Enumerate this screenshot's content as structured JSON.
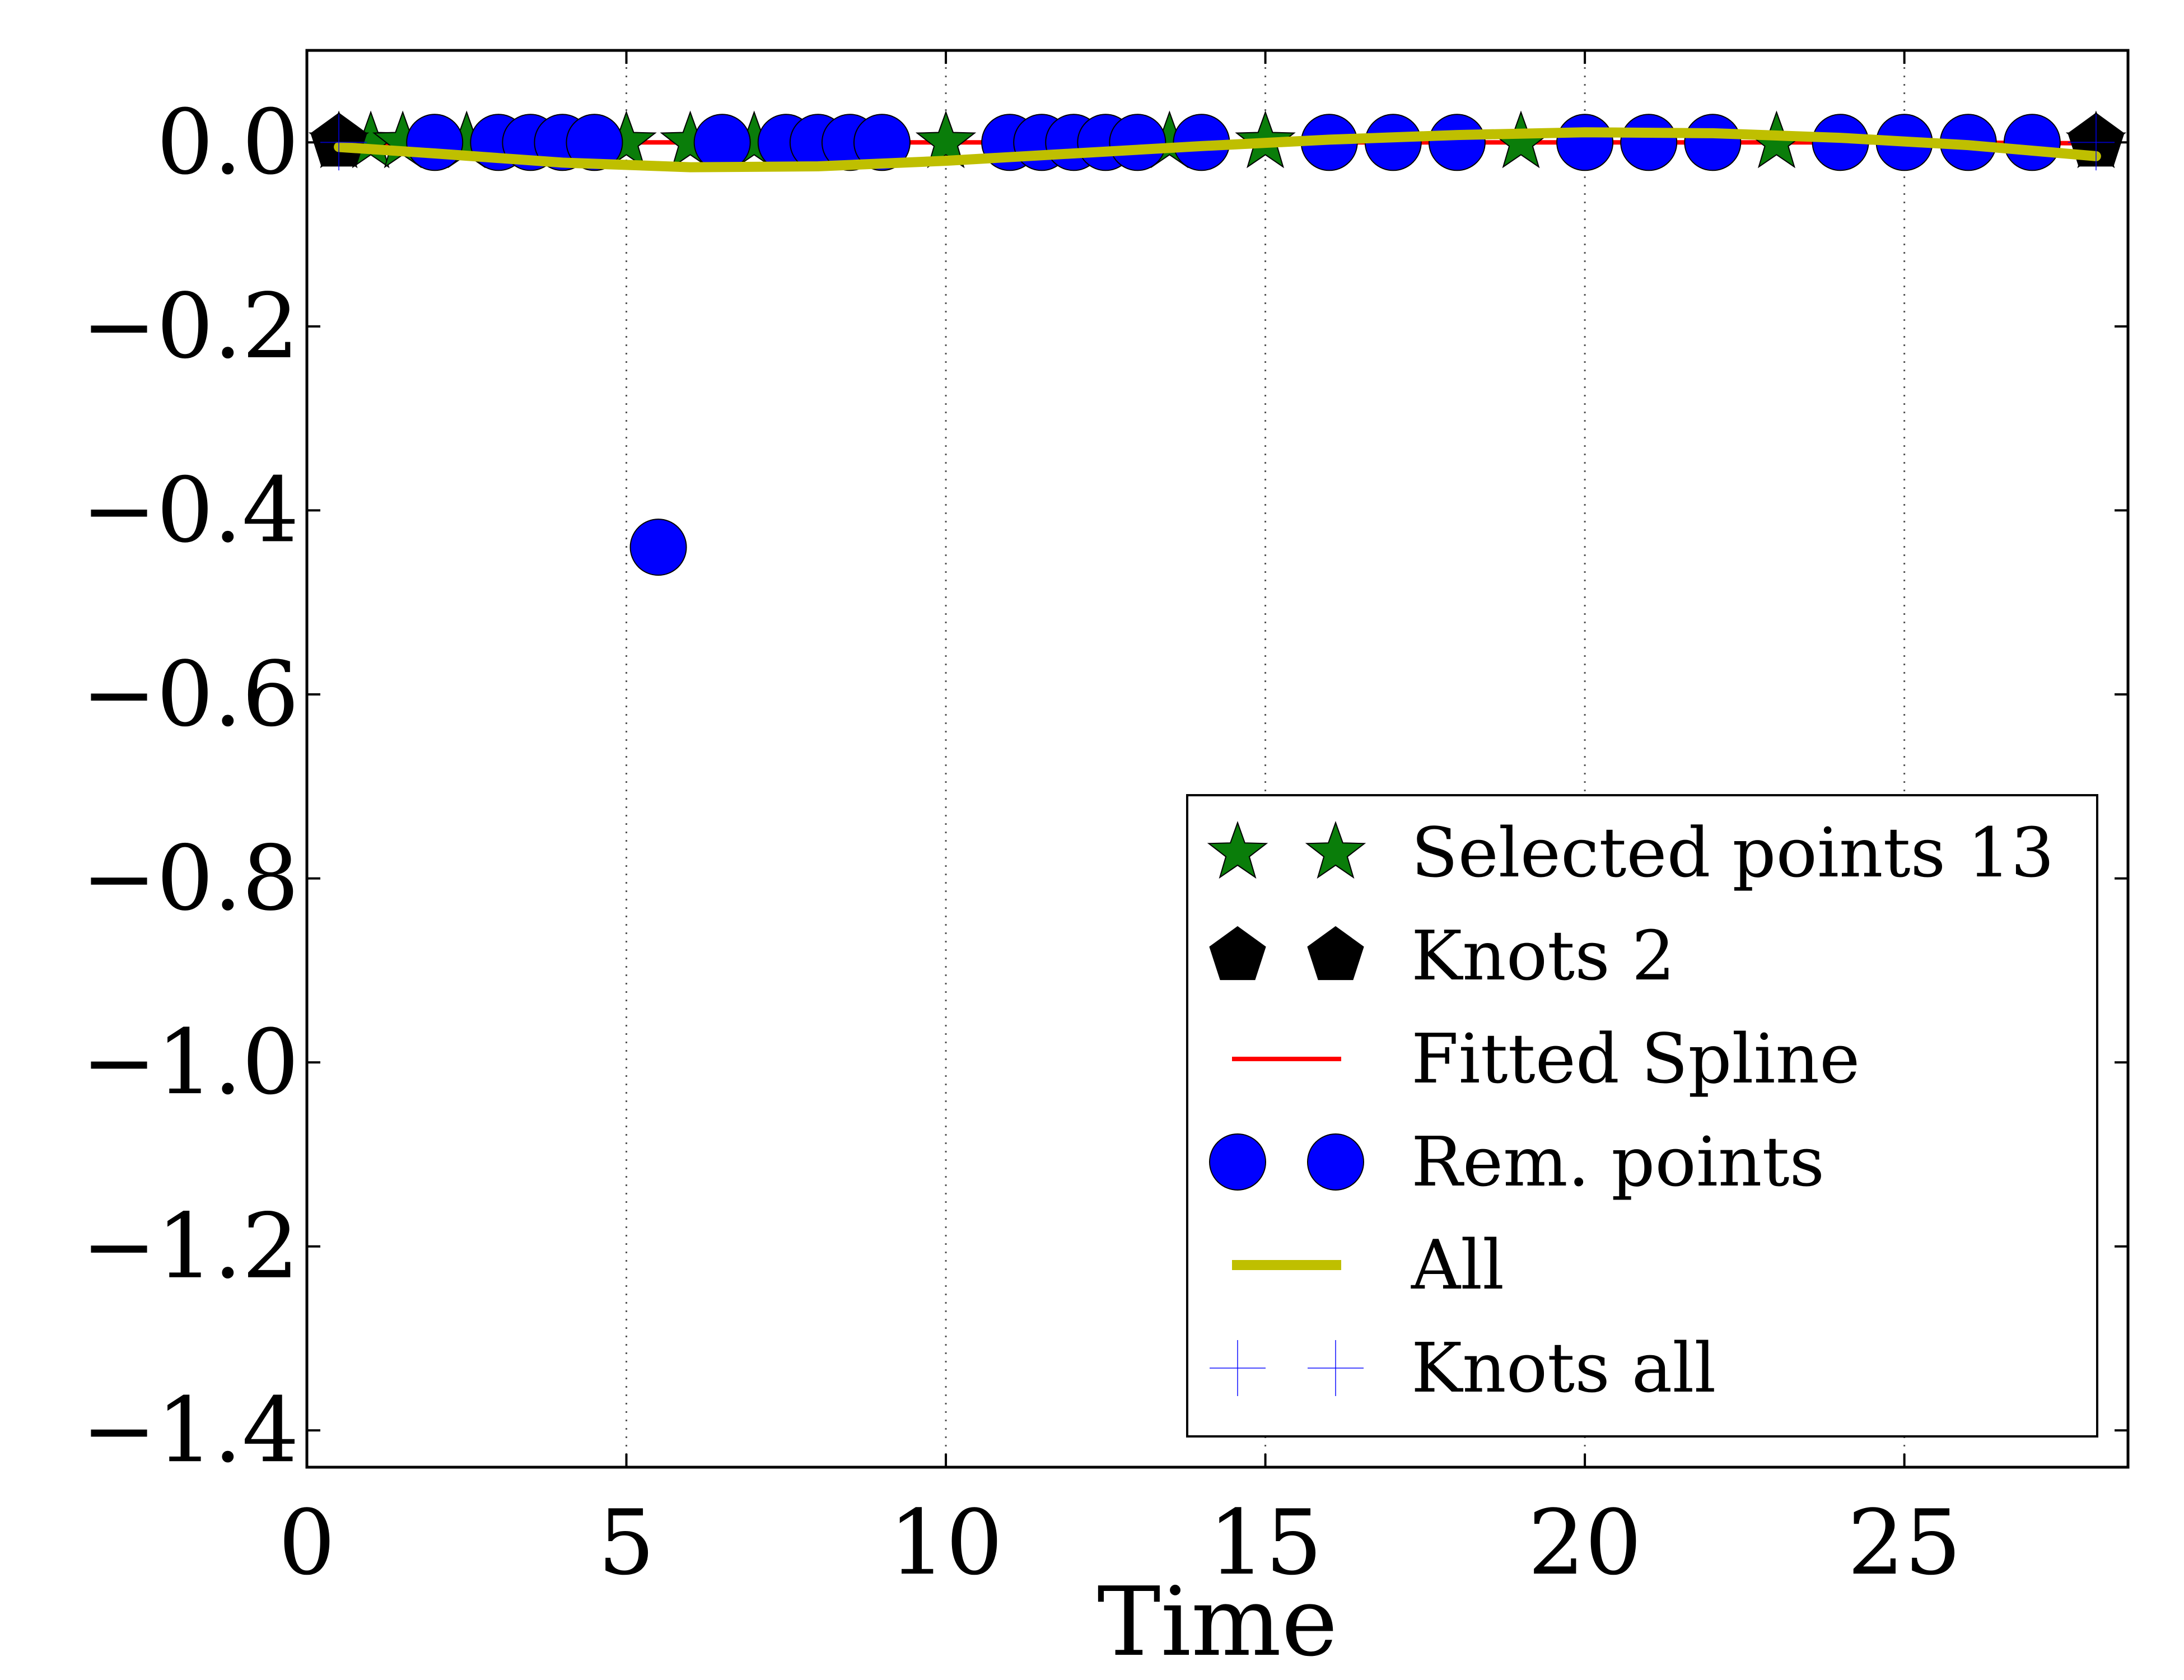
{
  "chart_data": {
    "type": "scatter",
    "title": "",
    "xlabel": "Time",
    "ylabel": "",
    "xlim": [
      0,
      28.5
    ],
    "ylim": [
      -1.44,
      0.1
    ],
    "xticks": [
      0,
      5,
      10,
      15,
      20,
      25
    ],
    "xtick_labels": [
      "0",
      "5",
      "10",
      "15",
      "20",
      "25"
    ],
    "yticks": [
      0.0,
      -0.2,
      -0.4,
      -0.6,
      -0.8,
      -1.0,
      -1.2,
      -1.4
    ],
    "ytick_labels": [
      "0.0",
      "−0.2",
      "−0.4",
      "−0.6",
      "−0.8",
      "−1.0",
      "−1.2",
      "−1.4"
    ],
    "grid": "vertical dotted at x ticks",
    "legend_position": "lower-right",
    "series": [
      {
        "name": "Selected points 13",
        "marker": "star",
        "color": "#0a7d0a",
        "points": [
          [
            1.0,
            0.0
          ],
          [
            1.5,
            0.0
          ],
          [
            2.5,
            0.0
          ],
          [
            5.0,
            0.0
          ],
          [
            6.0,
            0.0
          ],
          [
            7.0,
            0.0
          ],
          [
            10.0,
            0.0
          ],
          [
            13.5,
            0.0
          ],
          [
            15.0,
            0.0
          ],
          [
            19.0,
            0.0
          ],
          [
            23.0,
            0.0
          ],
          [
            0.5,
            0.0
          ],
          [
            28.0,
            0.0
          ]
        ]
      },
      {
        "name": "Knots 2",
        "marker": "pentagon",
        "color": "#000000",
        "points": [
          [
            0.5,
            0.0
          ],
          [
            28.0,
            0.0
          ]
        ]
      },
      {
        "name": "Fitted Spline",
        "marker": "line",
        "color": "#ff0000",
        "points": [
          [
            0.5,
            -0.001
          ],
          [
            5,
            0.0
          ],
          [
            10,
            0.0
          ],
          [
            15,
            0.0
          ],
          [
            20,
            0.0
          ],
          [
            25,
            0.0
          ],
          [
            28.0,
            -0.001
          ]
        ]
      },
      {
        "name": "Rem. points",
        "marker": "circle",
        "color": "#0000ff",
        "points": [
          [
            2.0,
            0.0
          ],
          [
            3.0,
            0.0
          ],
          [
            3.5,
            0.0
          ],
          [
            4.0,
            0.0
          ],
          [
            4.5,
            0.0
          ],
          [
            5.5,
            -0.44
          ],
          [
            6.5,
            0.0
          ],
          [
            7.5,
            0.0
          ],
          [
            8.0,
            0.0
          ],
          [
            8.5,
            0.0
          ],
          [
            9.0,
            0.0
          ],
          [
            11.0,
            0.0
          ],
          [
            11.5,
            0.0
          ],
          [
            12.0,
            0.0
          ],
          [
            12.5,
            0.0
          ],
          [
            13.0,
            0.0
          ],
          [
            14.0,
            0.0
          ],
          [
            16.0,
            0.0
          ],
          [
            17.0,
            0.0
          ],
          [
            18.0,
            0.0
          ],
          [
            20.0,
            0.0
          ],
          [
            21.0,
            0.0
          ],
          [
            22.0,
            0.0
          ],
          [
            24.0,
            0.0
          ],
          [
            25.0,
            0.0
          ],
          [
            26.0,
            0.0
          ],
          [
            27.0,
            0.0
          ]
        ]
      },
      {
        "name": "All",
        "marker": "line",
        "color": "#bfbf00",
        "points": [
          [
            0.5,
            -0.005
          ],
          [
            2,
            -0.012
          ],
          [
            4,
            -0.022
          ],
          [
            6,
            -0.027
          ],
          [
            8,
            -0.026
          ],
          [
            10,
            -0.02
          ],
          [
            12,
            -0.012
          ],
          [
            14,
            -0.004
          ],
          [
            16,
            0.003
          ],
          [
            18,
            0.008
          ],
          [
            20,
            0.011
          ],
          [
            22,
            0.01
          ],
          [
            24,
            0.005
          ],
          [
            26,
            -0.003
          ],
          [
            28.0,
            -0.015
          ]
        ]
      },
      {
        "name": "Knots all",
        "marker": "plus",
        "color": "#0000ff",
        "points": [
          [
            0.5,
            0.0
          ],
          [
            28.0,
            0.0
          ]
        ]
      }
    ]
  }
}
